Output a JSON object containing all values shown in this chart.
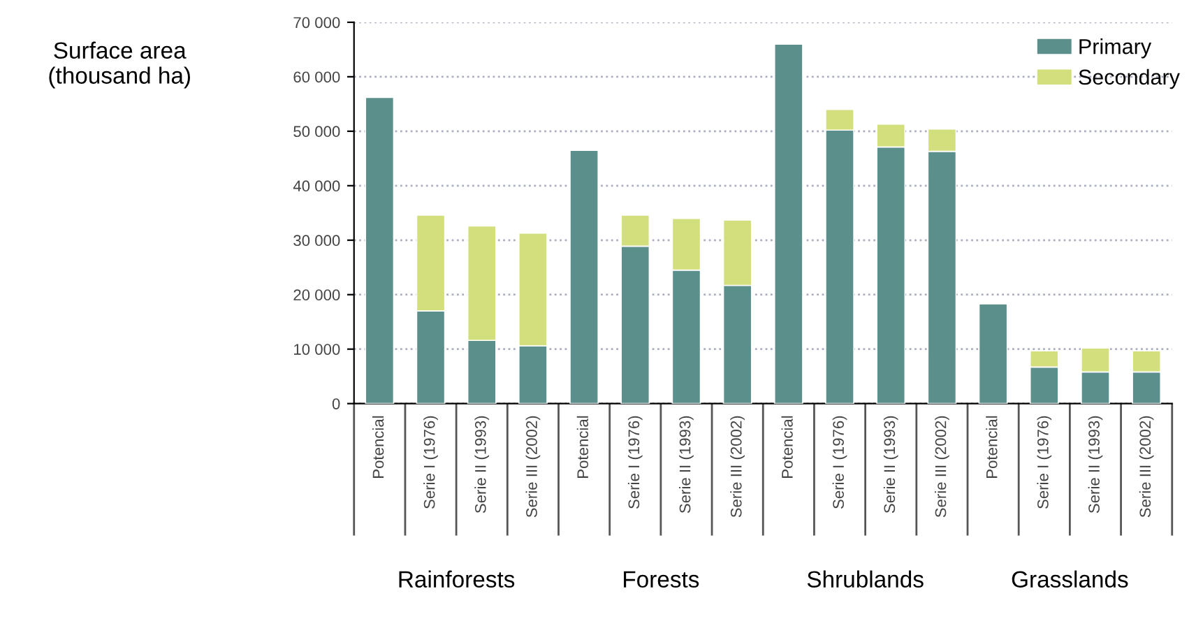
{
  "chart_data": {
    "type": "bar",
    "stacked": true,
    "categories": [
      "Potencial",
      "Serie I (1976)",
      "Serie II (1993)",
      "Serie III (2002)",
      "Potencial",
      "Serie I (1976)",
      "Serie II (1993)",
      "Serie III (2002)",
      "Potencial",
      "Serie I (1976)",
      "Serie II (1993)",
      "Serie III (2002)",
      "Potencial",
      "Serie I (1976)",
      "Serie II (1993)",
      "Serie III (2002)"
    ],
    "series": [
      {
        "name": "Primary",
        "color": "#5b8f8b",
        "values": [
          56200,
          17000,
          11600,
          10600,
          46500,
          28900,
          24500,
          21700,
          66000,
          50200,
          47100,
          46300,
          18300,
          6700,
          5800,
          5800
        ]
      },
      {
        "name": "Secondary",
        "color": "#d3df7c",
        "values": [
          null,
          17600,
          21000,
          20700,
          null,
          5700,
          9500,
          12000,
          null,
          3800,
          4200,
          4100,
          null,
          3000,
          4400,
          3900
        ]
      }
    ],
    "annotations": [
      "Surface area\n(thousand ha)",
      "Rainforests",
      "Forests",
      "Shrublands",
      "Grasslands"
    ],
    "ylim": [
      0,
      70000
    ],
    "yticks": [
      {
        "value": 0,
        "label": "0"
      },
      {
        "value": 10000,
        "label": "10 000"
      },
      {
        "value": 20000,
        "label": "20 000"
      },
      {
        "value": 30000,
        "label": "30 000"
      },
      {
        "value": 40000,
        "label": "40 000"
      },
      {
        "value": 50000,
        "label": "50 000"
      },
      {
        "value": 60000,
        "label": "60 000"
      },
      {
        "value": 70000,
        "label": "70 000"
      }
    ],
    "grid": "y",
    "legend": "top right"
  }
}
